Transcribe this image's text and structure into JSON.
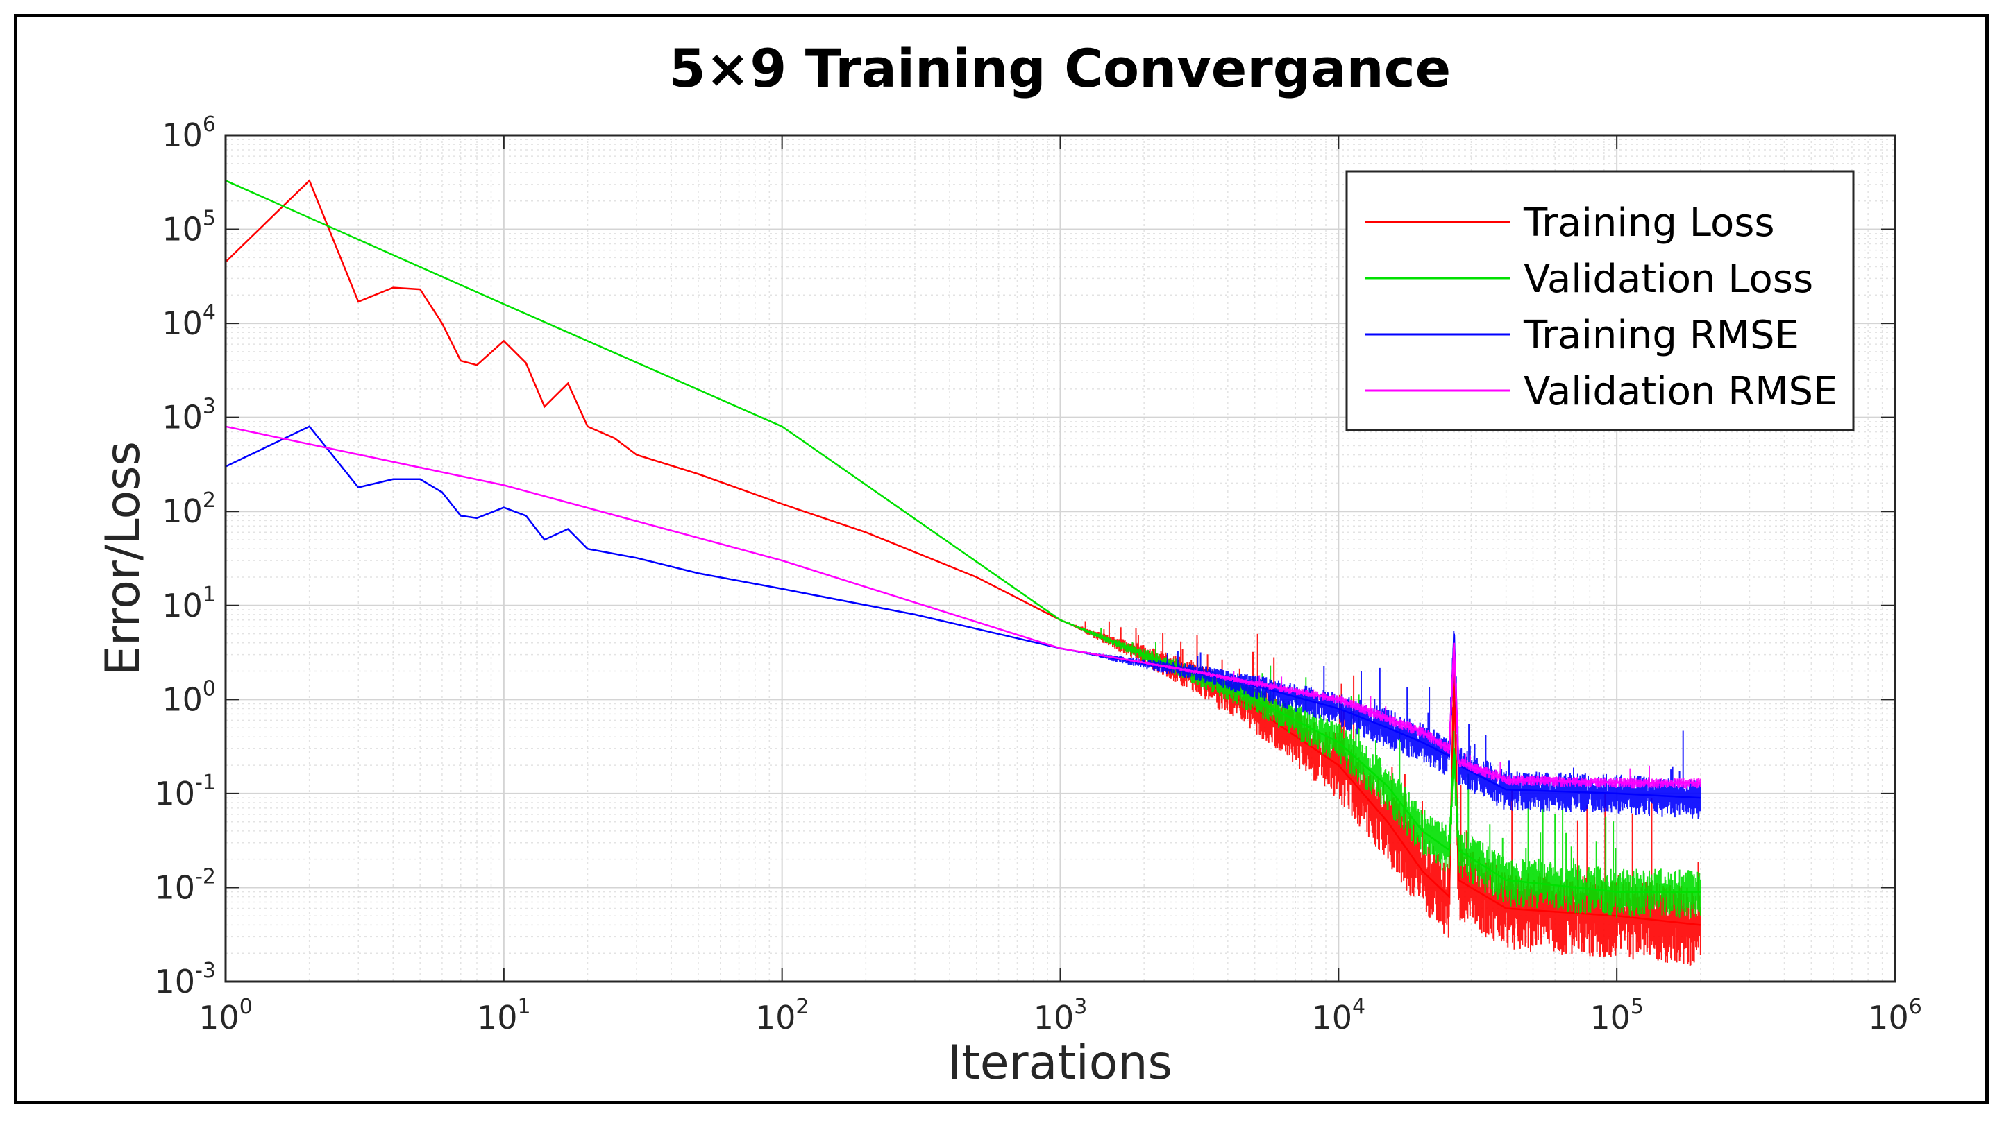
{
  "chart_data": {
    "type": "line",
    "title": "5×9 Training Convergance",
    "xlabel": "Iterations",
    "ylabel": "Error/Loss",
    "xscale": "log",
    "yscale": "log",
    "xlim": [
      1,
      1000000
    ],
    "ylim": [
      0.001,
      1000000
    ],
    "grid": true,
    "minor_grid": true,
    "legend_position": "top-right",
    "x_ticks": [
      {
        "base": "10",
        "exp": "0",
        "value": 1
      },
      {
        "base": "10",
        "exp": "1",
        "value": 10
      },
      {
        "base": "10",
        "exp": "2",
        "value": 100
      },
      {
        "base": "10",
        "exp": "3",
        "value": 1000
      },
      {
        "base": "10",
        "exp": "4",
        "value": 10000
      },
      {
        "base": "10",
        "exp": "5",
        "value": 100000
      },
      {
        "base": "10",
        "exp": "6",
        "value": 1000000
      }
    ],
    "y_ticks": [
      {
        "base": "10",
        "exp": "-3",
        "value": 0.001
      },
      {
        "base": "10",
        "exp": "-2",
        "value": 0.01
      },
      {
        "base": "10",
        "exp": "-1",
        "value": 0.1
      },
      {
        "base": "10",
        "exp": "0",
        "value": 1
      },
      {
        "base": "10",
        "exp": "1",
        "value": 10
      },
      {
        "base": "10",
        "exp": "2",
        "value": 100
      },
      {
        "base": "10",
        "exp": "3",
        "value": 1000
      },
      {
        "base": "10",
        "exp": "4",
        "value": 10000
      },
      {
        "base": "10",
        "exp": "5",
        "value": 100000
      },
      {
        "base": "10",
        "exp": "6",
        "value": 1000000
      }
    ],
    "series": [
      {
        "name": "Training Loss",
        "color": "#ff0000",
        "points": [
          [
            1,
            45000
          ],
          [
            2,
            330000
          ],
          [
            3,
            17000
          ],
          [
            4,
            24000
          ],
          [
            5,
            23000
          ],
          [
            6,
            10000
          ],
          [
            7,
            4000
          ],
          [
            8,
            3600
          ],
          [
            10,
            6500
          ],
          [
            12,
            3800
          ],
          [
            14,
            1300
          ],
          [
            17,
            2300
          ],
          [
            20,
            800
          ],
          [
            25,
            600
          ],
          [
            30,
            400
          ],
          [
            50,
            250
          ],
          [
            100,
            120
          ],
          [
            200,
            60
          ],
          [
            500,
            20
          ],
          [
            1000,
            7
          ],
          [
            2000,
            3
          ],
          [
            3000,
            1.8
          ],
          [
            5000,
            0.8
          ],
          [
            10000,
            0.2
          ],
          [
            15000,
            0.05
          ],
          [
            20000,
            0.015
          ],
          [
            25000,
            0.008
          ],
          [
            26000,
            2
          ],
          [
            27000,
            0.012
          ],
          [
            40000,
            0.006
          ],
          [
            100000,
            0.005
          ],
          [
            200000,
            0.004
          ]
        ]
      },
      {
        "name": "Validation Loss",
        "color": "#00e000",
        "points": [
          [
            1,
            330000
          ],
          [
            10,
            16000
          ],
          [
            100,
            800
          ],
          [
            1000,
            7
          ],
          [
            2000,
            3
          ],
          [
            3000,
            1.9
          ],
          [
            5000,
            1
          ],
          [
            10000,
            0.35
          ],
          [
            15000,
            0.12
          ],
          [
            20000,
            0.04
          ],
          [
            25000,
            0.025
          ],
          [
            26000,
            0.3
          ],
          [
            27000,
            0.025
          ],
          [
            40000,
            0.012
          ],
          [
            100000,
            0.009
          ],
          [
            200000,
            0.009
          ]
        ]
      },
      {
        "name": "Training RMSE",
        "color": "#0000ff",
        "points": [
          [
            1,
            300
          ],
          [
            2,
            800
          ],
          [
            3,
            180
          ],
          [
            4,
            220
          ],
          [
            5,
            220
          ],
          [
            6,
            160
          ],
          [
            7,
            90
          ],
          [
            8,
            85
          ],
          [
            10,
            110
          ],
          [
            12,
            90
          ],
          [
            14,
            50
          ],
          [
            17,
            65
          ],
          [
            20,
            40
          ],
          [
            30,
            32
          ],
          [
            50,
            22
          ],
          [
            100,
            15
          ],
          [
            300,
            8
          ],
          [
            1000,
            3.5
          ],
          [
            2000,
            2.4
          ],
          [
            3000,
            2
          ],
          [
            5000,
            1.4
          ],
          [
            10000,
            0.8
          ],
          [
            15000,
            0.5
          ],
          [
            20000,
            0.35
          ],
          [
            25000,
            0.25
          ],
          [
            26000,
            5
          ],
          [
            27000,
            0.2
          ],
          [
            40000,
            0.11
          ],
          [
            100000,
            0.1
          ],
          [
            200000,
            0.09
          ]
        ]
      },
      {
        "name": "Validation RMSE",
        "color": "#ff00ff",
        "points": [
          [
            1,
            800
          ],
          [
            10,
            190
          ],
          [
            100,
            30
          ],
          [
            1000,
            3.5
          ],
          [
            3000,
            2
          ],
          [
            10000,
            1
          ],
          [
            20000,
            0.45
          ],
          [
            25000,
            0.3
          ],
          [
            26000,
            4
          ],
          [
            27000,
            0.22
          ],
          [
            40000,
            0.14
          ],
          [
            100000,
            0.13
          ],
          [
            200000,
            0.13
          ]
        ]
      }
    ]
  }
}
